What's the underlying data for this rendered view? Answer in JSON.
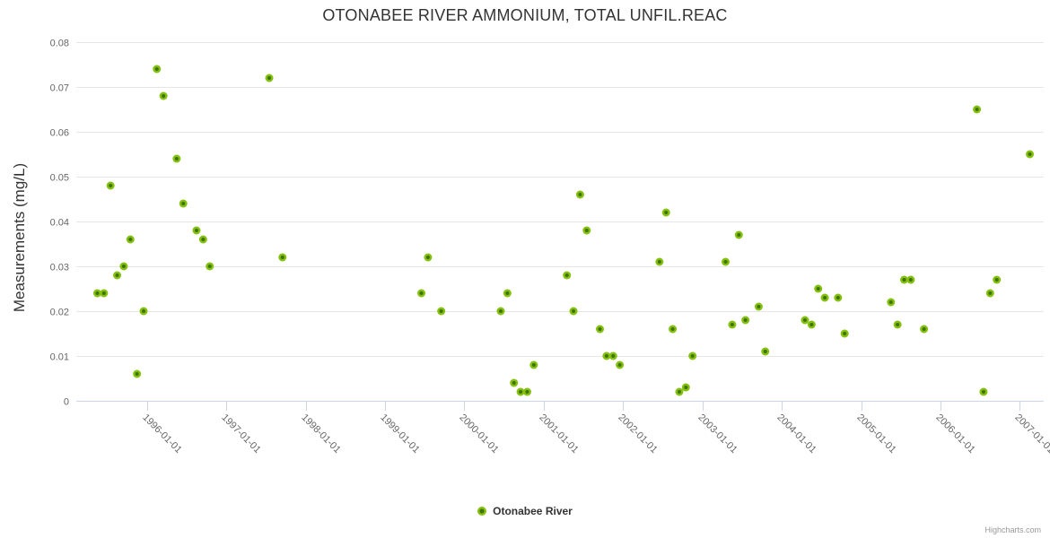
{
  "chart_data": {
    "type": "scatter",
    "title": "OTONABEE RIVER AMMONIUM, TOTAL UNFIL.REAC",
    "xlabel": "",
    "ylabel": "Measurements (mg/L)",
    "grid": true,
    "legend_position": "bottom-center",
    "credits": "Highcharts.com",
    "yaxis": {
      "min": 0,
      "max": 0.08,
      "tick_interval": 0.01,
      "tick_labels": [
        "0",
        "0.01",
        "0.02",
        "0.03",
        "0.04",
        "0.05",
        "0.06",
        "0.07",
        "0.08"
      ]
    },
    "xaxis": {
      "tick_labels": [
        "1996-01-01",
        "1997-01-01",
        "1998-01-01",
        "1999-01-01",
        "2000-01-01",
        "2001-01-01",
        "2002-01-01",
        "2003-01-01",
        "2004-01-01",
        "2005-01-01",
        "2006-01-01",
        "2007-01-01"
      ],
      "label_rotation_deg": 45,
      "range_year_min": 1995.11,
      "range_year_max": 2007.3
    },
    "series": [
      {
        "name": "Otonabee River",
        "marker_color_outer": "#84c00e",
        "marker_color_inner": "#3f7405",
        "points": [
          [
            "1995-05",
            0.024
          ],
          [
            "1995-06",
            0.024
          ],
          [
            "1995-07",
            0.048
          ],
          [
            "1995-08",
            0.028
          ],
          [
            "1995-09",
            0.03
          ],
          [
            "1995-10",
            0.036
          ],
          [
            "1995-11",
            0.006
          ],
          [
            "1995-12",
            0.02
          ],
          [
            "1996-02",
            0.074
          ],
          [
            "1996-03",
            0.068
          ],
          [
            "1996-05",
            0.054
          ],
          [
            "1996-06",
            0.044
          ],
          [
            "1996-08",
            0.038
          ],
          [
            "1996-09",
            0.036
          ],
          [
            "1996-10",
            0.03
          ],
          [
            "1997-07",
            0.072
          ],
          [
            "1997-09",
            0.032
          ],
          [
            "1999-06",
            0.024
          ],
          [
            "1999-07",
            0.032
          ],
          [
            "1999-09",
            0.02
          ],
          [
            "2000-06",
            0.02
          ],
          [
            "2000-07",
            0.024
          ],
          [
            "2000-08",
            0.004
          ],
          [
            "2000-09",
            0.002
          ],
          [
            "2000-10",
            0.002
          ],
          [
            "2000-11",
            0.008
          ],
          [
            "2001-04",
            0.028
          ],
          [
            "2001-05",
            0.02
          ],
          [
            "2001-06",
            0.046
          ],
          [
            "2001-07",
            0.038
          ],
          [
            "2001-09",
            0.016
          ],
          [
            "2001-10",
            0.01
          ],
          [
            "2001-11",
            0.01
          ],
          [
            "2001-12",
            0.008
          ],
          [
            "2002-06",
            0.031
          ],
          [
            "2002-07",
            0.042
          ],
          [
            "2002-08",
            0.016
          ],
          [
            "2002-09",
            0.002
          ],
          [
            "2002-10",
            0.003
          ],
          [
            "2002-11",
            0.01
          ],
          [
            "2003-04",
            0.031
          ],
          [
            "2003-05",
            0.017
          ],
          [
            "2003-06",
            0.037
          ],
          [
            "2003-07",
            0.018
          ],
          [
            "2003-09",
            0.021
          ],
          [
            "2003-10",
            0.011
          ],
          [
            "2004-04",
            0.018
          ],
          [
            "2004-05",
            0.017
          ],
          [
            "2004-06",
            0.025
          ],
          [
            "2004-07",
            0.023
          ],
          [
            "2004-09",
            0.023
          ],
          [
            "2004-10",
            0.015
          ],
          [
            "2005-05",
            0.022
          ],
          [
            "2005-06",
            0.017
          ],
          [
            "2005-07",
            0.027
          ],
          [
            "2005-08",
            0.027
          ],
          [
            "2005-10",
            0.016
          ],
          [
            "2006-06",
            0.065
          ],
          [
            "2006-07",
            0.002
          ],
          [
            "2006-08",
            0.024
          ],
          [
            "2006-09",
            0.027
          ],
          [
            "2007-02",
            0.055
          ]
        ]
      }
    ]
  }
}
